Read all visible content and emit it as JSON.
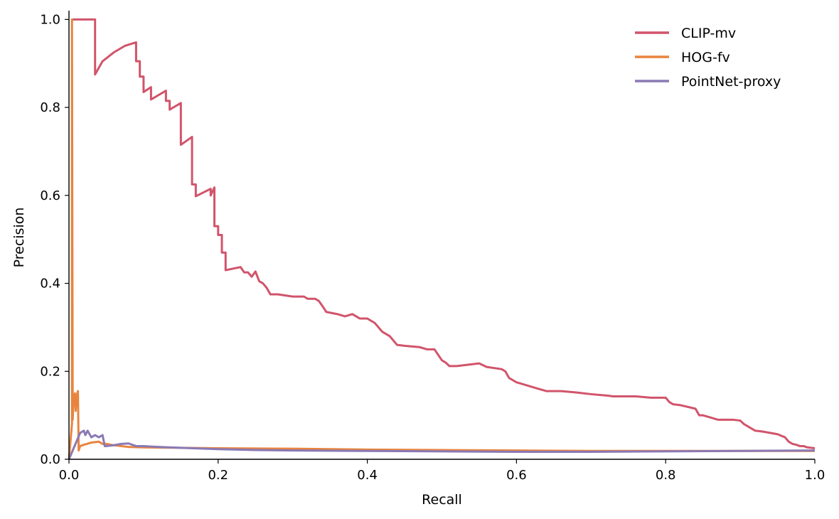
{
  "chart_data": {
    "type": "line",
    "title": "",
    "xlabel": "Recall",
    "ylabel": "Precision",
    "xlim": [
      0.0,
      1.0
    ],
    "ylim": [
      0.0,
      1.02
    ],
    "xticks": [
      "0.0",
      "0.2",
      "0.4",
      "0.6",
      "0.8",
      "1.0"
    ],
    "yticks": [
      "0.0",
      "0.2",
      "0.4",
      "0.6",
      "0.8",
      "1.0"
    ],
    "grid": false,
    "legend_position": "top-right",
    "series": [
      {
        "name": "CLIP-mv",
        "color": "#d1546b",
        "x": [
          0.005,
          0.035,
          0.035,
          0.045,
          0.06,
          0.075,
          0.09,
          0.09,
          0.095,
          0.095,
          0.1,
          0.1,
          0.11,
          0.11,
          0.13,
          0.13,
          0.135,
          0.135,
          0.15,
          0.15,
          0.165,
          0.165,
          0.17,
          0.17,
          0.19,
          0.19,
          0.195,
          0.195,
          0.2,
          0.2,
          0.205,
          0.205,
          0.21,
          0.21,
          0.23,
          0.235,
          0.24,
          0.245,
          0.25,
          0.255,
          0.26,
          0.265,
          0.27,
          0.28,
          0.3,
          0.31,
          0.315,
          0.32,
          0.33,
          0.335,
          0.34,
          0.345,
          0.36,
          0.37,
          0.38,
          0.39,
          0.4,
          0.41,
          0.415,
          0.42,
          0.43,
          0.435,
          0.44,
          0.45,
          0.47,
          0.48,
          0.49,
          0.5,
          0.505,
          0.51,
          0.52,
          0.55,
          0.56,
          0.58,
          0.585,
          0.59,
          0.6,
          0.62,
          0.63,
          0.64,
          0.66,
          0.68,
          0.7,
          0.72,
          0.73,
          0.76,
          0.78,
          0.8,
          0.805,
          0.81,
          0.82,
          0.84,
          0.845,
          0.85,
          0.86,
          0.87,
          0.89,
          0.9,
          0.905,
          0.91,
          0.92,
          0.93,
          0.94,
          0.95,
          0.96,
          0.965,
          0.97,
          0.975,
          0.98,
          0.985,
          0.99,
          1.0
        ],
        "values": [
          1.0,
          1.0,
          0.875,
          0.905,
          0.925,
          0.94,
          0.948,
          0.905,
          0.905,
          0.87,
          0.87,
          0.835,
          0.846,
          0.818,
          0.838,
          0.815,
          0.815,
          0.795,
          0.81,
          0.715,
          0.733,
          0.625,
          0.625,
          0.598,
          0.615,
          0.6,
          0.618,
          0.53,
          0.53,
          0.51,
          0.51,
          0.47,
          0.47,
          0.43,
          0.437,
          0.425,
          0.425,
          0.415,
          0.427,
          0.405,
          0.4,
          0.39,
          0.375,
          0.375,
          0.37,
          0.37,
          0.37,
          0.365,
          0.365,
          0.36,
          0.348,
          0.335,
          0.33,
          0.325,
          0.33,
          0.32,
          0.32,
          0.31,
          0.3,
          0.29,
          0.28,
          0.27,
          0.26,
          0.258,
          0.255,
          0.25,
          0.25,
          0.225,
          0.22,
          0.212,
          0.212,
          0.218,
          0.21,
          0.205,
          0.2,
          0.185,
          0.175,
          0.165,
          0.16,
          0.155,
          0.155,
          0.152,
          0.148,
          0.145,
          0.143,
          0.143,
          0.14,
          0.14,
          0.13,
          0.125,
          0.123,
          0.115,
          0.1,
          0.1,
          0.095,
          0.09,
          0.09,
          0.088,
          0.08,
          0.075,
          0.065,
          0.063,
          0.06,
          0.057,
          0.05,
          0.04,
          0.035,
          0.033,
          0.03,
          0.03,
          0.027,
          0.025
        ]
      },
      {
        "name": "HOG-fv",
        "color": "#e8843e",
        "x": [
          0.0,
          0.004,
          0.004,
          0.005,
          0.006,
          0.008,
          0.009,
          0.01,
          0.012,
          0.013,
          0.014,
          0.015,
          0.02,
          0.03,
          0.04,
          0.045,
          0.05,
          0.06,
          0.07,
          0.08,
          0.1,
          0.15,
          0.2,
          0.3,
          0.4,
          0.5,
          0.6,
          0.7,
          0.8,
          0.9,
          1.0
        ],
        "values": [
          0.0,
          0.08,
          1.0,
          0.09,
          0.13,
          0.15,
          0.11,
          0.14,
          0.155,
          0.02,
          0.025,
          0.03,
          0.033,
          0.038,
          0.04,
          0.035,
          0.035,
          0.032,
          0.03,
          0.028,
          0.027,
          0.026,
          0.025,
          0.024,
          0.022,
          0.021,
          0.02,
          0.019,
          0.019,
          0.019,
          0.019
        ]
      },
      {
        "name": "PointNet-proxy",
        "color": "#8a79b5",
        "x": [
          0.0,
          0.005,
          0.01,
          0.015,
          0.02,
          0.022,
          0.025,
          0.03,
          0.035,
          0.04,
          0.045,
          0.048,
          0.05,
          0.06,
          0.07,
          0.08,
          0.09,
          0.1,
          0.12,
          0.15,
          0.2,
          0.25,
          0.3,
          0.4,
          0.5,
          0.6,
          0.7,
          0.8,
          0.9,
          1.0
        ],
        "values": [
          0.0,
          0.02,
          0.04,
          0.06,
          0.065,
          0.055,
          0.065,
          0.05,
          0.055,
          0.05,
          0.055,
          0.03,
          0.03,
          0.032,
          0.035,
          0.036,
          0.03,
          0.03,
          0.028,
          0.026,
          0.023,
          0.021,
          0.02,
          0.019,
          0.018,
          0.017,
          0.017,
          0.018,
          0.019,
          0.02
        ]
      }
    ]
  }
}
